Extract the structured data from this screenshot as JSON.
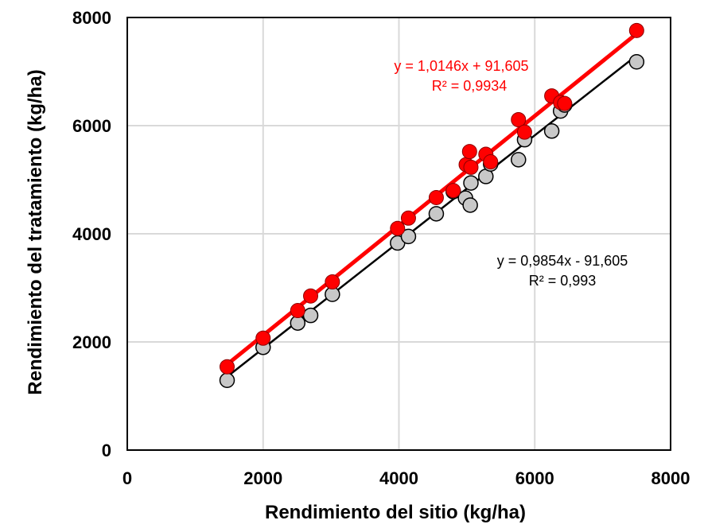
{
  "chart_data": {
    "type": "scatter",
    "xlabel": "Rendimiento  del sitio (kg/ha)",
    "ylabel": "Rendimiento  del tratamiento (kg/ha)",
    "xlim": [
      0,
      8000
    ],
    "ylim": [
      0,
      8000
    ],
    "xticks": [
      "0",
      "2000",
      "4000",
      "6000",
      "8000"
    ],
    "yticks": [
      "0",
      "2000",
      "4000",
      "6000",
      "8000"
    ],
    "grid": true,
    "series": [
      {
        "color": "#c8c8c8",
        "trend_color": "#000000",
        "trendline": {
          "slope": 0.9854,
          "intercept": -91.605
        },
        "equation": "y = 0,9854x  - 91,605",
        "r2": "R² = 0,993",
        "points": [
          [
            1470,
            1290
          ],
          [
            2000,
            1900
          ],
          [
            2510,
            2350
          ],
          [
            2700,
            2490
          ],
          [
            3020,
            2880
          ],
          [
            3980,
            3830
          ],
          [
            4140,
            3950
          ],
          [
            4550,
            4370
          ],
          [
            4800,
            4780
          ],
          [
            4980,
            4660
          ],
          [
            5050,
            4530
          ],
          [
            5060,
            4940
          ],
          [
            5280,
            5060
          ],
          [
            5350,
            5290
          ],
          [
            5760,
            5370
          ],
          [
            5850,
            5740
          ],
          [
            6250,
            5900
          ],
          [
            6380,
            6270
          ],
          [
            6440,
            6380
          ],
          [
            7500,
            7180
          ]
        ]
      },
      {
        "color": "#ff0000",
        "trend_color": "#ff0000",
        "trendline": {
          "slope": 1.0146,
          "intercept": 91.605
        },
        "equation": "y = 1,0146x  + 91,605",
        "r2": "R² = 0,9934",
        "points": [
          [
            1470,
            1540
          ],
          [
            2000,
            2070
          ],
          [
            2510,
            2580
          ],
          [
            2700,
            2850
          ],
          [
            3020,
            3110
          ],
          [
            3980,
            4100
          ],
          [
            4140,
            4290
          ],
          [
            4550,
            4670
          ],
          [
            4800,
            4800
          ],
          [
            4990,
            5280
          ],
          [
            5040,
            5520
          ],
          [
            5060,
            5230
          ],
          [
            5280,
            5470
          ],
          [
            5350,
            5330
          ],
          [
            5760,
            6110
          ],
          [
            5850,
            5880
          ],
          [
            6250,
            6550
          ],
          [
            6380,
            6430
          ],
          [
            6440,
            6410
          ],
          [
            7500,
            7760
          ]
        ]
      }
    ]
  }
}
